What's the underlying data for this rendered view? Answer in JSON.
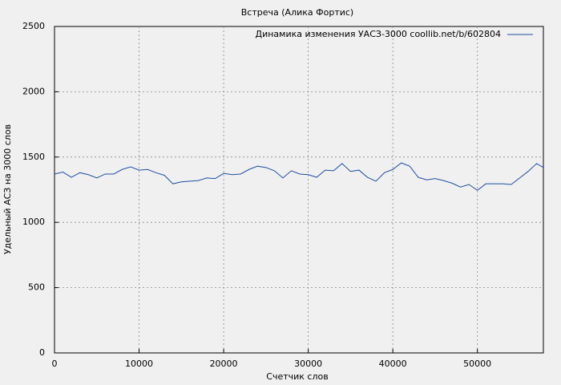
{
  "chart_data": {
    "type": "line",
    "title": "Встреча (Алика Фортис)",
    "x_label": "Счетчик слов",
    "y_label": "Удельный АСЗ на 3000 слов",
    "x": [
      0,
      1000,
      2000,
      3000,
      4000,
      5000,
      6000,
      7000,
      8000,
      9000,
      10000,
      11000,
      12000,
      13000,
      14000,
      15000,
      16000,
      17000,
      18000,
      19000,
      20000,
      21000,
      22000,
      23000,
      24000,
      25000,
      26000,
      27000,
      28000,
      29000,
      30000,
      31000,
      32000,
      33000,
      34000,
      35000,
      36000,
      37000,
      38000,
      39000,
      40000,
      41000,
      42000,
      43000,
      44000,
      45000,
      46000,
      47000,
      48000,
      49000,
      50000,
      51000,
      52000,
      53000,
      54000,
      55000,
      56000,
      57000,
      57800
    ],
    "series": [
      {
        "name": "Динамика изменения УАСЗ-3000 coollib.net/b/602804",
        "color": "#1f4fa0",
        "values": [
          1370,
          1385,
          1345,
          1380,
          1365,
          1340,
          1370,
          1370,
          1405,
          1425,
          1400,
          1405,
          1380,
          1360,
          1295,
          1310,
          1315,
          1320,
          1340,
          1335,
          1375,
          1365,
          1370,
          1405,
          1430,
          1420,
          1395,
          1340,
          1395,
          1370,
          1365,
          1345,
          1400,
          1395,
          1450,
          1390,
          1400,
          1345,
          1315,
          1380,
          1405,
          1455,
          1430,
          1345,
          1325,
          1335,
          1320,
          1300,
          1270,
          1290,
          1245,
          1295,
          1295,
          1295,
          1290,
          1340,
          1390,
          1450,
          1420
        ]
      }
    ],
    "xlim": [
      0,
      57800
    ],
    "ylim": [
      0,
      2500
    ],
    "xticks": [
      0,
      10000,
      20000,
      30000,
      40000,
      50000
    ],
    "yticks": [
      0,
      500,
      1000,
      1500,
      2000,
      2500
    ],
    "grid": true,
    "legend": "top-right"
  }
}
